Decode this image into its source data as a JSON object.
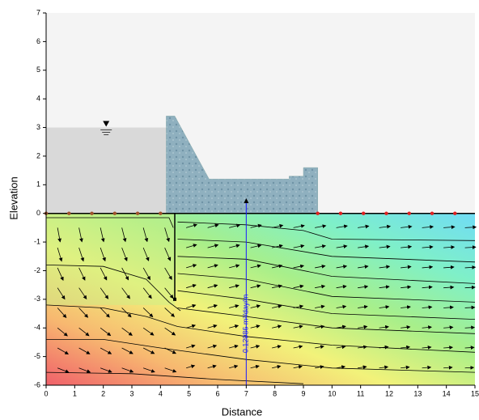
{
  "chart_data": {
    "type": "seepage",
    "x_label": "Distance",
    "y_label": "Elevation",
    "xlim": [
      0,
      15
    ],
    "ylim": [
      -6,
      7
    ],
    "xticks": [
      0,
      1,
      2,
      3,
      4,
      5,
      6,
      7,
      8,
      9,
      10,
      11,
      12,
      13,
      14,
      15
    ],
    "yticks": [
      -6,
      -5,
      -4,
      -3,
      -2,
      -1,
      0,
      1,
      2,
      3,
      4,
      5,
      6,
      7
    ],
    "grid": false,
    "reservoir_level": 3,
    "flux_x": 7,
    "flux_label": "0.12986 m³/day/m"
  }
}
